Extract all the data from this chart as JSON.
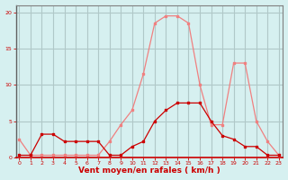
{
  "x": [
    0,
    1,
    2,
    3,
    4,
    5,
    6,
    7,
    8,
    9,
    10,
    11,
    12,
    13,
    14,
    15,
    16,
    17,
    18,
    19,
    20,
    21,
    22,
    23
  ],
  "y_rafales": [
    2.5,
    0.3,
    0.3,
    0.3,
    0.3,
    0.3,
    0.3,
    0.3,
    2.2,
    4.5,
    6.5,
    11.5,
    18.5,
    19.5,
    19.5,
    18.5,
    10.0,
    4.5,
    4.5,
    13.0,
    13.0,
    5.0,
    2.2,
    0.3
  ],
  "y_moyen": [
    0.3,
    0.3,
    3.2,
    3.2,
    2.2,
    2.2,
    2.2,
    2.2,
    0.3,
    0.3,
    1.5,
    2.2,
    5.0,
    6.5,
    7.5,
    7.5,
    7.5,
    5.0,
    3.0,
    2.5,
    1.5,
    1.5,
    0.3,
    0.3
  ],
  "color_rafales": "#f08080",
  "color_moyen": "#cc0000",
  "bg_color": "#d6f0f0",
  "grid_color": "#b0c8c8",
  "xlabel": "Vent moyen/en rafales ( km/h )",
  "ylim": [
    0,
    21
  ],
  "yticks": [
    0,
    5,
    10,
    15,
    20
  ],
  "xlim": [
    -0.3,
    23.3
  ],
  "xlabel_color": "#cc0000",
  "tick_color": "#cc0000",
  "axis_color": "#808080"
}
